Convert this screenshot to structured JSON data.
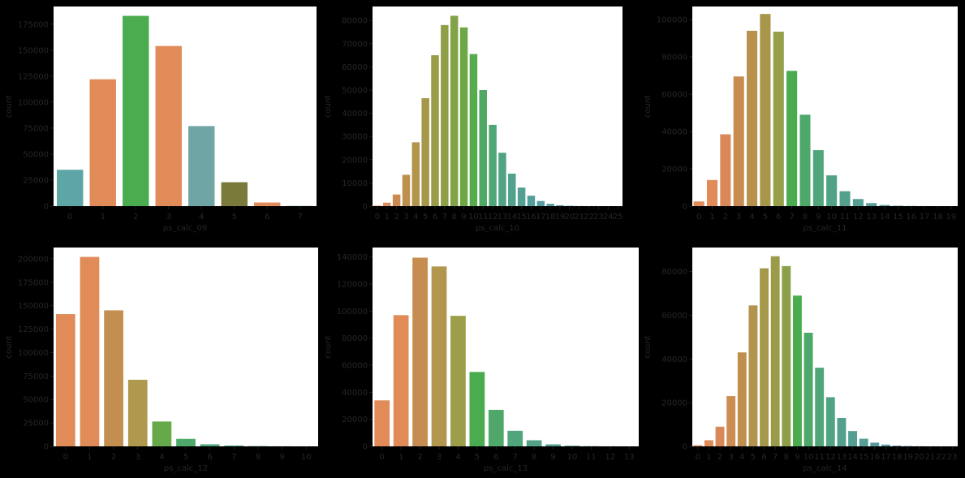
{
  "palette": [
    "#5ea5a5",
    "#e08b58",
    "#4aab4f",
    "#b09b54",
    "#8ea83f",
    "#5b9e6e"
  ],
  "chart_data": [
    {
      "type": "bar",
      "xlabel": "ps_calc_09",
      "ylabel": "count",
      "categories": [
        "0",
        "1",
        "2",
        "3",
        "4",
        "5",
        "6",
        "7"
      ],
      "values": [
        35000,
        122000,
        183000,
        154000,
        77000,
        23000,
        3500,
        200
      ],
      "ylim": [
        0,
        192000
      ],
      "yticks": [
        0,
        25000,
        50000,
        75000,
        100000,
        125000,
        150000,
        175000
      ],
      "colors": [
        "#5ea5a5",
        "#e08b58",
        "#4aab4f",
        "#e08b58",
        "#6fa5a5",
        "#7a7a3a",
        "#e08b58",
        "#5ea5a5"
      ]
    },
    {
      "type": "bar",
      "xlabel": "ps_calc_10",
      "ylabel": "count",
      "categories": [
        "0",
        "1",
        "2",
        "3",
        "4",
        "5",
        "6",
        "7",
        "8",
        "9",
        "10",
        "11",
        "12",
        "13",
        "14",
        "15",
        "16",
        "17",
        "18",
        "19",
        "20",
        "21",
        "22",
        "23",
        "24",
        "25"
      ],
      "values": [
        200,
        1500,
        5000,
        13500,
        27500,
        46500,
        65000,
        78000,
        82000,
        77000,
        65500,
        50000,
        35000,
        23000,
        14000,
        8000,
        4500,
        2200,
        1000,
        400,
        150,
        50,
        20,
        10,
        5,
        2
      ],
      "ylim": [
        0,
        86000
      ],
      "yticks": [
        0,
        10000,
        20000,
        30000,
        40000,
        50000,
        60000,
        70000,
        80000
      ],
      "colors": [
        "#d98d5c",
        "#d98d5c",
        "#cd8a50",
        "#bf904d",
        "#b2944b",
        "#a6984a",
        "#9a9c49",
        "#8e9f48",
        "#82a247",
        "#6ea845",
        "#56ab4d",
        "#4fa863",
        "#4fa676",
        "#50a483",
        "#51a28d",
        "#52a094",
        "#539e9a",
        "#549d9f",
        "#559ca3",
        "#569ba6",
        "#579aa9",
        "#5899ab",
        "#5998ad",
        "#5a97af",
        "#5b96b0",
        "#5c95b1"
      ]
    },
    {
      "type": "bar",
      "xlabel": "ps_calc_11",
      "ylabel": "count",
      "categories": [
        "0",
        "1",
        "2",
        "3",
        "4",
        "5",
        "6",
        "7",
        "8",
        "9",
        "10",
        "11",
        "12",
        "13",
        "14",
        "15",
        "16",
        "17",
        "18",
        "19"
      ],
      "values": [
        2500,
        14000,
        38500,
        69500,
        94000,
        103000,
        93500,
        72500,
        49000,
        30000,
        16500,
        8000,
        3800,
        1600,
        600,
        200,
        80,
        30,
        10,
        5
      ],
      "ylim": [
        0,
        107000
      ],
      "yticks": [
        0,
        20000,
        40000,
        60000,
        80000,
        100000
      ],
      "colors": [
        "#e08b58",
        "#e08b58",
        "#d98958",
        "#c98c50",
        "#b8924d",
        "#a8974b",
        "#96a049",
        "#4aab4f",
        "#4ea86a",
        "#50a67a",
        "#52a385",
        "#53a18d",
        "#549f94",
        "#559e99",
        "#569c9d",
        "#579ba1",
        "#589aa5",
        "#5999a8",
        "#5a98ab",
        "#5b97ad"
      ]
    },
    {
      "type": "bar",
      "xlabel": "ps_calc_12",
      "ylabel": "count",
      "categories": [
        "0",
        "1",
        "2",
        "3",
        "4",
        "5",
        "6",
        "7",
        "8",
        "9",
        "10"
      ],
      "values": [
        141000,
        202000,
        145000,
        71000,
        26500,
        8000,
        2200,
        900,
        300,
        100,
        30
      ],
      "ylim": [
        0,
        212000
      ],
      "yticks": [
        0,
        25000,
        50000,
        75000,
        100000,
        125000,
        150000,
        175000,
        200000
      ],
      "colors": [
        "#e08b58",
        "#e08b58",
        "#c48e50",
        "#b0984c",
        "#66a94a",
        "#4ea96a",
        "#50a67c",
        "#52a388",
        "#53a190",
        "#549f96",
        "#559d9b"
      ]
    },
    {
      "type": "bar",
      "xlabel": "ps_calc_13",
      "ylabel": "count",
      "categories": [
        "0",
        "1",
        "2",
        "3",
        "4",
        "5",
        "6",
        "7",
        "8",
        "9",
        "10",
        "11",
        "12",
        "13"
      ],
      "values": [
        34000,
        97000,
        139500,
        133000,
        96500,
        55000,
        27000,
        11500,
        4500,
        1500,
        500,
        150,
        50,
        10
      ],
      "ylim": [
        0,
        147000
      ],
      "yticks": [
        0,
        20000,
        40000,
        60000,
        80000,
        100000,
        120000,
        140000
      ],
      "colors": [
        "#e08b58",
        "#e08b58",
        "#c78d50",
        "#b3964d",
        "#9d9e4a",
        "#4aab4f",
        "#4fa86a",
        "#51a57c",
        "#53a288",
        "#54a091",
        "#559e98",
        "#569c9d",
        "#579ba1",
        "#589aa5"
      ]
    },
    {
      "type": "bar",
      "xlabel": "ps_calc_14",
      "ylabel": "count",
      "categories": [
        "0",
        "1",
        "2",
        "3",
        "4",
        "5",
        "6",
        "7",
        "8",
        "9",
        "10",
        "11",
        "12",
        "13",
        "14",
        "15",
        "16",
        "17",
        "18",
        "19",
        "20",
        "21",
        "22",
        "23"
      ],
      "values": [
        500,
        2800,
        9000,
        23000,
        43000,
        64500,
        81500,
        87000,
        82500,
        69000,
        52000,
        36000,
        22500,
        13000,
        7000,
        3500,
        1700,
        800,
        350,
        150,
        60,
        25,
        10,
        5
      ],
      "ylim": [
        0,
        91000
      ],
      "yticks": [
        0,
        20000,
        40000,
        60000,
        80000
      ],
      "colors": [
        "#e08b58",
        "#e08b58",
        "#d98958",
        "#cc8c52",
        "#c08f4f",
        "#b3934d",
        "#a6984b",
        "#9a9c49",
        "#8da049",
        "#4aab4f",
        "#4ea86a",
        "#50a679",
        "#52a384",
        "#53a18d",
        "#549f94",
        "#559e99",
        "#569c9d",
        "#579ba1",
        "#589aa5",
        "#5999a8",
        "#5a98ab",
        "#5b97ad",
        "#5c96af",
        "#5d95b1"
      ]
    }
  ]
}
